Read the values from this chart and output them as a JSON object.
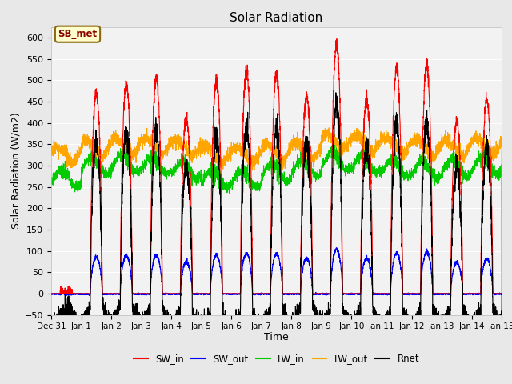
{
  "title": "Solar Radiation",
  "xlabel": "Time",
  "ylabel": "Solar Radiation (W/m2)",
  "ylim": [
    -50,
    625
  ],
  "yticks": [
    -50,
    0,
    50,
    100,
    150,
    200,
    250,
    300,
    350,
    400,
    450,
    500,
    550,
    600
  ],
  "fig_bg": "#e8e8e8",
  "plot_bg": "#f2f2f2",
  "grid_color": "#ffffff",
  "annotation_text": "SB_met",
  "annotation_bg": "#ffffcc",
  "annotation_border": "#8b6914",
  "series_colors": {
    "SW_in": "#ff0000",
    "SW_out": "#0000ff",
    "LW_in": "#00cc00",
    "LW_out": "#ffa500",
    "Rnet": "#000000"
  },
  "sw_peaks": [
    0,
    470,
    490,
    505,
    410,
    500,
    525,
    515,
    460,
    585,
    455,
    530,
    535,
    400,
    455
  ],
  "lw_in_base": [
    270,
    300,
    305,
    300,
    290,
    270,
    270,
    285,
    295,
    310,
    305,
    295,
    290,
    295,
    300
  ],
  "lw_out_base": [
    325,
    340,
    345,
    345,
    340,
    325,
    325,
    330,
    335,
    355,
    350,
    345,
    340,
    340,
    345
  ],
  "xtick_labels": [
    "Dec 31",
    "Jan 1",
    "Jan 2",
    "Jan 3",
    "Jan 4",
    "Jan 5",
    "Jan 6",
    "Jan 7",
    "Jan 8",
    "Jan 9",
    "Jan 10",
    "Jan 11",
    "Jan 12",
    "Jan 13",
    "Jan 14",
    "Jan 15"
  ],
  "n_days": 15,
  "pts_per_day": 288
}
